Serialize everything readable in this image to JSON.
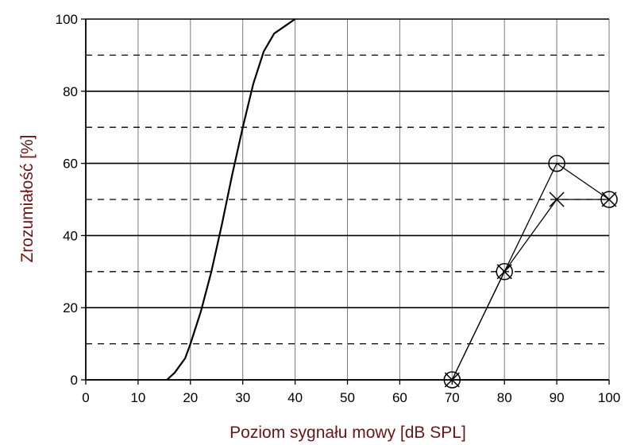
{
  "chart_data": {
    "type": "line",
    "xlabel": "Poziom sygnału mowy [dB SPL]",
    "ylabel": "Zrozumiałość [%]",
    "xlim": [
      0,
      100
    ],
    "ylim": [
      0,
      100
    ],
    "x_ticks": [
      "0",
      "10",
      "20",
      "30",
      "40",
      "50",
      "60",
      "70",
      "80",
      "90",
      "100"
    ],
    "y_ticks": [
      "0",
      "20",
      "40",
      "60",
      "80",
      "100"
    ],
    "grid": {
      "major_y": [
        0,
        20,
        40,
        60,
        80,
        100
      ],
      "minor_y_dashed": [
        10,
        30,
        50,
        70,
        90
      ],
      "major_x": [
        0,
        10,
        20,
        30,
        40,
        50,
        60,
        70,
        80,
        90,
        100
      ]
    },
    "series": [
      {
        "marker": "none",
        "x": [
          15.5,
          17,
          19,
          20,
          22,
          24,
          26,
          28,
          30,
          32,
          34,
          36,
          38,
          40
        ],
        "y": [
          0,
          2,
          6,
          10,
          19,
          30,
          43,
          57,
          70,
          82,
          91,
          96,
          98,
          100
        ]
      },
      {
        "marker": "circle",
        "x": [
          70,
          80,
          90,
          100
        ],
        "y": [
          0,
          30,
          60,
          50
        ]
      },
      {
        "marker": "cross",
        "x": [
          70,
          80,
          90,
          100
        ],
        "y": [
          0,
          30,
          50,
          50
        ]
      }
    ],
    "colors": {
      "line": "#000000",
      "grid": "#000000",
      "axis_title": "#6b1414",
      "background": "#ffffff"
    }
  }
}
